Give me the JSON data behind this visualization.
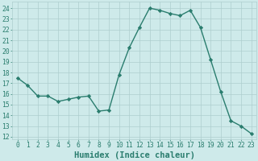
{
  "x": [
    0,
    1,
    2,
    3,
    4,
    5,
    6,
    7,
    8,
    9,
    10,
    11,
    12,
    13,
    14,
    15,
    16,
    17,
    18,
    19,
    20,
    21,
    22,
    23
  ],
  "y": [
    17.5,
    16.8,
    15.8,
    15.8,
    15.3,
    15.5,
    15.7,
    15.8,
    14.4,
    14.5,
    17.8,
    20.3,
    22.2,
    24.0,
    23.8,
    23.5,
    23.3,
    23.8,
    22.2,
    19.2,
    16.2,
    13.5,
    13.0,
    12.3
  ],
  "line_color": "#2a7d6e",
  "marker": "D",
  "markersize": 2.2,
  "linewidth": 1.0,
  "bg_color": "#ceeaea",
  "grid_color": "#aecece",
  "xlabel": "Humidex (Indice chaleur)",
  "ylabel_ticks": [
    12,
    13,
    14,
    15,
    16,
    17,
    18,
    19,
    20,
    21,
    22,
    23,
    24
  ],
  "xlim": [
    -0.5,
    23.5
  ],
  "ylim": [
    11.8,
    24.6
  ],
  "xlabel_fontsize": 7.5,
  "tick_fontsize": 5.8,
  "tick_color": "#2a7d6e"
}
